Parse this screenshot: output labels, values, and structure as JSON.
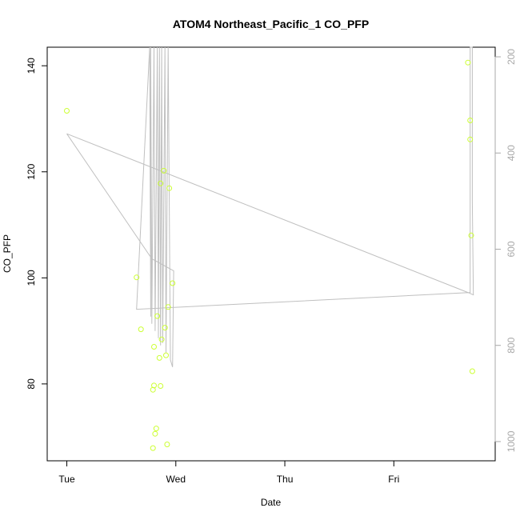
{
  "chart_data": {
    "type": "scatter",
    "title": "ATOM4 Northeast_Pacific_1 CO_PFP",
    "xlabel": "Date",
    "ylabel": "CO_PFP",
    "x_tick_labels": [
      "Tue",
      "Wed",
      "Thu",
      "Fri"
    ],
    "x_tick_values": [
      0,
      1,
      2,
      3
    ],
    "x_unit": "days since Tue 00:00",
    "xlim": [
      -0.18,
      3.93
    ],
    "ylim": [
      65.5,
      143.5
    ],
    "y_ticks": [
      80,
      100,
      120,
      140
    ],
    "y2_ticks": [
      200,
      400,
      600,
      800,
      1000
    ],
    "y2lim": [
      1040,
      180
    ],
    "grid": false,
    "colors": {
      "points": "#ccff33",
      "profile_line": "#c0c0c0",
      "right_axis": "#a8a8a8"
    },
    "series": [
      {
        "kind": "points",
        "x": [
          0.0,
          0.64,
          0.68,
          0.79,
          0.79,
          0.8,
          0.8,
          0.81,
          0.82,
          0.83,
          0.85,
          0.86,
          0.86,
          0.87,
          0.89,
          0.9,
          0.91,
          0.92,
          0.93,
          0.94,
          0.97,
          3.68,
          3.7,
          3.7,
          3.71,
          3.72
        ],
        "y": [
          131.5,
          100.1,
          90.3,
          67.9,
          78.9,
          79.7,
          87.0,
          70.6,
          71.6,
          92.8,
          84.9,
          79.6,
          117.8,
          88.4,
          120.2,
          90.6,
          85.4,
          68.6,
          94.5,
          116.9,
          99.0,
          140.6,
          129.7,
          126.1,
          108.0,
          82.4
        ]
      },
      {
        "kind": "profile",
        "axis": "right",
        "x": [
          0.0,
          0.78,
          0.98,
          0.97,
          0.95,
          0.93,
          0.91,
          0.9,
          0.88,
          0.87,
          0.86,
          0.85,
          0.84,
          0.83,
          0.81,
          0.8,
          0.78,
          0.77,
          0.77,
          0.76,
          0.64,
          3.7,
          3.7,
          3.7,
          3.72,
          3.72,
          3.73,
          3.68,
          0.0
        ],
        "y": [
          360,
          620,
          645,
          845,
          830,
          180,
          815,
          180,
          795,
          180,
          800,
          180,
          785,
          180,
          770,
          180,
          755,
          180,
          740,
          180,
          725,
          690,
          180,
          180,
          180,
          500,
          695,
          690,
          360
        ]
      }
    ]
  }
}
